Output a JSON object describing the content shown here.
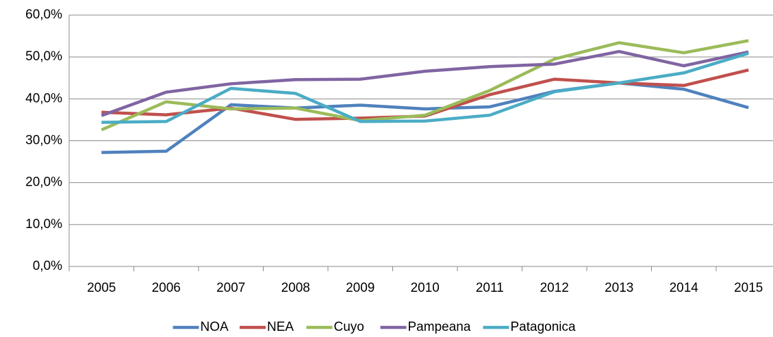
{
  "chart_data": {
    "type": "line",
    "categories": [
      "2005",
      "2006",
      "2007",
      "2008",
      "2009",
      "2010",
      "2011",
      "2012",
      "2013",
      "2014",
      "2015"
    ],
    "series": [
      {
        "name": "NOA",
        "color": "#4f81bd",
        "values": [
          27.2,
          27.5,
          38.6,
          37.8,
          38.5,
          37.6,
          38.1,
          41.8,
          43.8,
          42.3,
          37.9
        ]
      },
      {
        "name": "NEA",
        "color": "#c0504d",
        "values": [
          36.8,
          36.2,
          37.8,
          35.1,
          35.4,
          35.9,
          41.0,
          44.7,
          43.8,
          43.2,
          46.9
        ]
      },
      {
        "name": "Cuyo",
        "color": "#9bbb59",
        "values": [
          32.6,
          39.3,
          37.6,
          37.8,
          34.8,
          36.1,
          42.0,
          49.5,
          53.4,
          51.0,
          53.9
        ]
      },
      {
        "name": "Pampeana",
        "color": "#8064a2",
        "values": [
          36.0,
          41.6,
          43.6,
          44.6,
          44.7,
          46.6,
          47.7,
          48.3,
          51.3,
          47.9,
          51.2
        ]
      },
      {
        "name": "Patagonica",
        "color": "#4bacc6",
        "values": [
          34.4,
          34.6,
          42.5,
          41.3,
          34.6,
          34.7,
          36.1,
          41.7,
          43.8,
          46.2,
          50.9
        ]
      }
    ],
    "ylim": [
      0,
      60
    ],
    "yticks": [
      {
        "value": 0,
        "label": "0,0%"
      },
      {
        "value": 10,
        "label": "10,0%"
      },
      {
        "value": 20,
        "label": "20,0%"
      },
      {
        "value": 30,
        "label": "30,0%"
      },
      {
        "value": 40,
        "label": "40,0%"
      },
      {
        "value": 50,
        "label": "50,0%"
      },
      {
        "value": 60,
        "label": "60,0%"
      }
    ],
    "grid": true,
    "legend": "bottom"
  }
}
